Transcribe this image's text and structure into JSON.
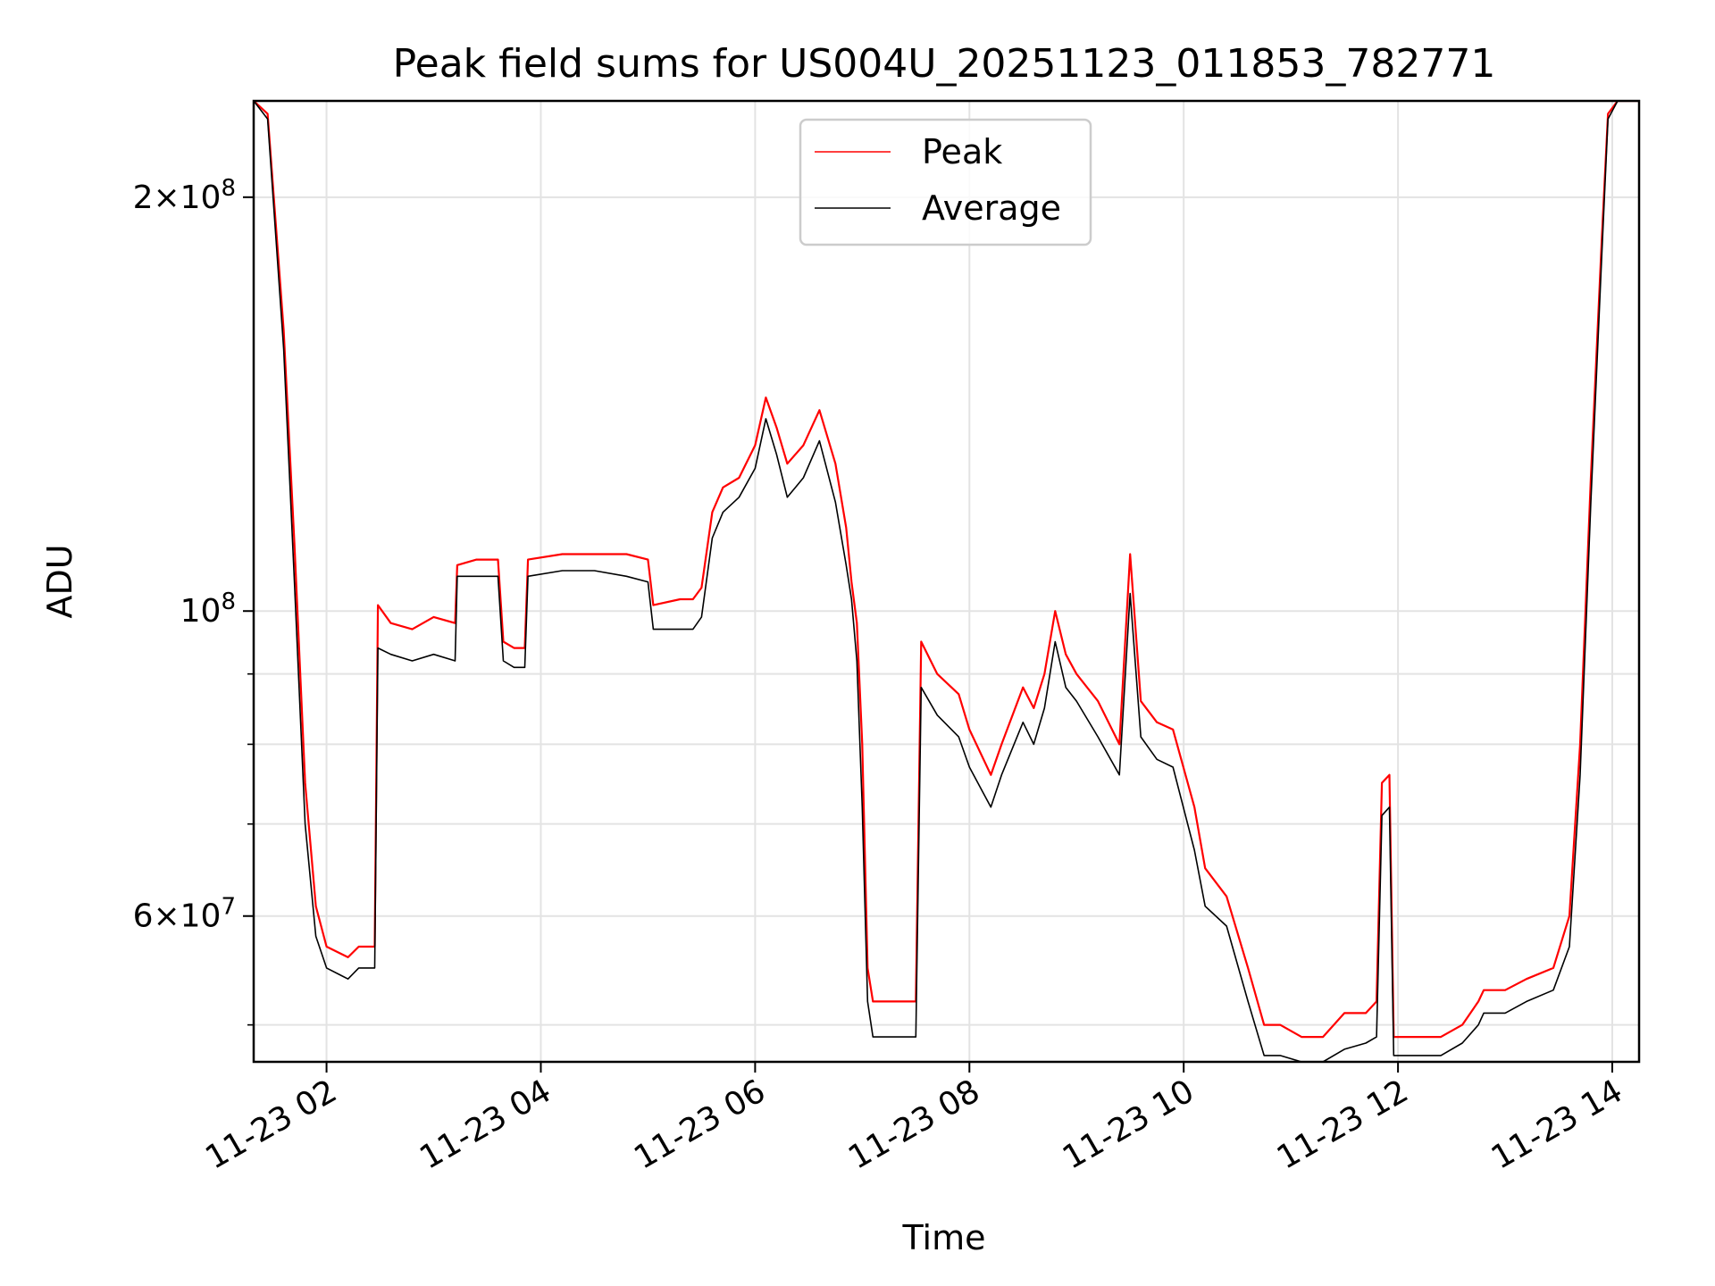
{
  "chart_data": {
    "type": "line",
    "title": "Peak field sums for US004U_20251123_011853_782771",
    "xlabel": "Time",
    "ylabel": "ADU",
    "x_unit": "hours on 2025-11-23",
    "xlim": [
      1.32,
      14.25
    ],
    "ylim": [
      47000000,
      235000000
    ],
    "y_scale": "log",
    "grid": true,
    "legend_position": "upper center",
    "x_ticks": [
      {
        "value": 2,
        "label": "11-23 02"
      },
      {
        "value": 4,
        "label": "11-23 04"
      },
      {
        "value": 6,
        "label": "11-23 06"
      },
      {
        "value": 8,
        "label": "11-23 08"
      },
      {
        "value": 10,
        "label": "11-23 10"
      },
      {
        "value": 12,
        "label": "11-23 12"
      },
      {
        "value": 14,
        "label": "11-23 14"
      }
    ],
    "y_major_ticks": [
      {
        "value": 60000000,
        "mant": "6",
        "exp": "7"
      },
      {
        "value": 100000000,
        "mant": "",
        "exp": "8"
      },
      {
        "value": 200000000,
        "mant": "2",
        "exp": "8"
      }
    ],
    "y_minor_ticks": [
      50000000,
      70000000,
      80000000,
      90000000
    ],
    "series": [
      {
        "name": "Peak",
        "color": "#ff0000",
        "x": [
          1.32,
          1.45,
          1.6,
          1.7,
          1.8,
          1.9,
          2.0,
          2.2,
          2.3,
          2.45,
          2.48,
          2.6,
          2.8,
          3.0,
          3.2,
          3.22,
          3.4,
          3.6,
          3.65,
          3.75,
          3.85,
          3.88,
          4.2,
          4.5,
          4.8,
          5.0,
          5.05,
          5.3,
          5.42,
          5.5,
          5.6,
          5.7,
          5.85,
          6.0,
          6.1,
          6.2,
          6.3,
          6.45,
          6.6,
          6.75,
          6.85,
          6.9,
          6.95,
          7.0,
          7.05,
          7.1,
          7.5,
          7.55,
          7.7,
          7.9,
          8.0,
          8.2,
          8.3,
          8.5,
          8.6,
          8.7,
          8.8,
          8.9,
          9.0,
          9.2,
          9.4,
          9.5,
          9.6,
          9.75,
          9.9,
          10.1,
          10.2,
          10.4,
          10.6,
          10.75,
          10.9,
          11.1,
          11.3,
          11.5,
          11.7,
          11.8,
          11.85,
          11.92,
          11.96,
          12.05,
          12.4,
          12.6,
          12.75,
          12.8,
          13.0,
          13.2,
          13.45,
          13.6,
          13.7,
          13.8,
          13.9,
          13.96,
          14.05,
          14.25
        ],
        "y": [
          235000000,
          230000000,
          160000000,
          112000000,
          75000000,
          61000000,
          57000000,
          56000000,
          57000000,
          57000000,
          101000000,
          98000000,
          97000000,
          99000000,
          98000000,
          108000000,
          109000000,
          109000000,
          95000000,
          94000000,
          94000000,
          109000000,
          110000000,
          110000000,
          110000000,
          109000000,
          101000000,
          102000000,
          102000000,
          104000000,
          118000000,
          123000000,
          125000000,
          132000000,
          143000000,
          136000000,
          128000000,
          132000000,
          140000000,
          128000000,
          115000000,
          105000000,
          98000000,
          80000000,
          55000000,
          52000000,
          52000000,
          95000000,
          90000000,
          87000000,
          82000000,
          76000000,
          80000000,
          88000000,
          85000000,
          90000000,
          100000000,
          93000000,
          90000000,
          86000000,
          80000000,
          110000000,
          86000000,
          83000000,
          82000000,
          72000000,
          65000000,
          62000000,
          55000000,
          50000000,
          50000000,
          49000000,
          49000000,
          51000000,
          51000000,
          52000000,
          75000000,
          76000000,
          49000000,
          49000000,
          49000000,
          50000000,
          52000000,
          53000000,
          53000000,
          54000000,
          55000000,
          60000000,
          80000000,
          125000000,
          185000000,
          230000000,
          235000000,
          235000000
        ]
      },
      {
        "name": "Average",
        "color": "#000000",
        "x": [
          1.32,
          1.45,
          1.6,
          1.7,
          1.8,
          1.9,
          2.0,
          2.2,
          2.3,
          2.45,
          2.48,
          2.6,
          2.8,
          3.0,
          3.2,
          3.22,
          3.4,
          3.6,
          3.65,
          3.75,
          3.85,
          3.88,
          4.2,
          4.5,
          4.8,
          5.0,
          5.05,
          5.3,
          5.42,
          5.5,
          5.6,
          5.7,
          5.85,
          6.0,
          6.1,
          6.2,
          6.3,
          6.45,
          6.6,
          6.75,
          6.85,
          6.9,
          6.95,
          7.0,
          7.05,
          7.1,
          7.5,
          7.55,
          7.7,
          7.9,
          8.0,
          8.2,
          8.3,
          8.5,
          8.6,
          8.7,
          8.8,
          8.9,
          9.0,
          9.2,
          9.4,
          9.5,
          9.6,
          9.75,
          9.9,
          10.1,
          10.2,
          10.4,
          10.6,
          10.75,
          10.9,
          11.1,
          11.3,
          11.5,
          11.7,
          11.8,
          11.85,
          11.92,
          11.96,
          12.05,
          12.4,
          12.6,
          12.75,
          12.8,
          13.0,
          13.2,
          13.45,
          13.6,
          13.7,
          13.8,
          13.9,
          13.96,
          14.05,
          14.25
        ],
        "y": [
          235000000,
          228000000,
          155000000,
          105000000,
          70000000,
          58000000,
          55000000,
          54000000,
          55000000,
          55000000,
          94000000,
          93000000,
          92000000,
          93000000,
          92000000,
          106000000,
          106000000,
          106000000,
          92000000,
          91000000,
          91000000,
          106000000,
          107000000,
          107000000,
          106000000,
          105000000,
          97000000,
          97000000,
          97000000,
          99000000,
          113000000,
          118000000,
          121000000,
          127000000,
          138000000,
          130000000,
          121000000,
          125000000,
          133000000,
          120000000,
          108000000,
          102000000,
          92000000,
          72000000,
          52000000,
          49000000,
          49000000,
          88000000,
          84000000,
          81000000,
          77000000,
          72000000,
          76000000,
          83000000,
          80000000,
          85000000,
          95000000,
          88000000,
          86000000,
          81000000,
          76000000,
          103000000,
          81000000,
          78000000,
          77000000,
          67000000,
          61000000,
          59000000,
          52000000,
          47500000,
          47500000,
          47000000,
          47000000,
          48000000,
          48500000,
          49000000,
          71000000,
          72000000,
          47500000,
          47500000,
          47500000,
          48500000,
          50000000,
          51000000,
          51000000,
          52000000,
          53000000,
          57000000,
          76000000,
          120000000,
          180000000,
          228000000,
          235000000,
          235000000
        ]
      }
    ]
  }
}
